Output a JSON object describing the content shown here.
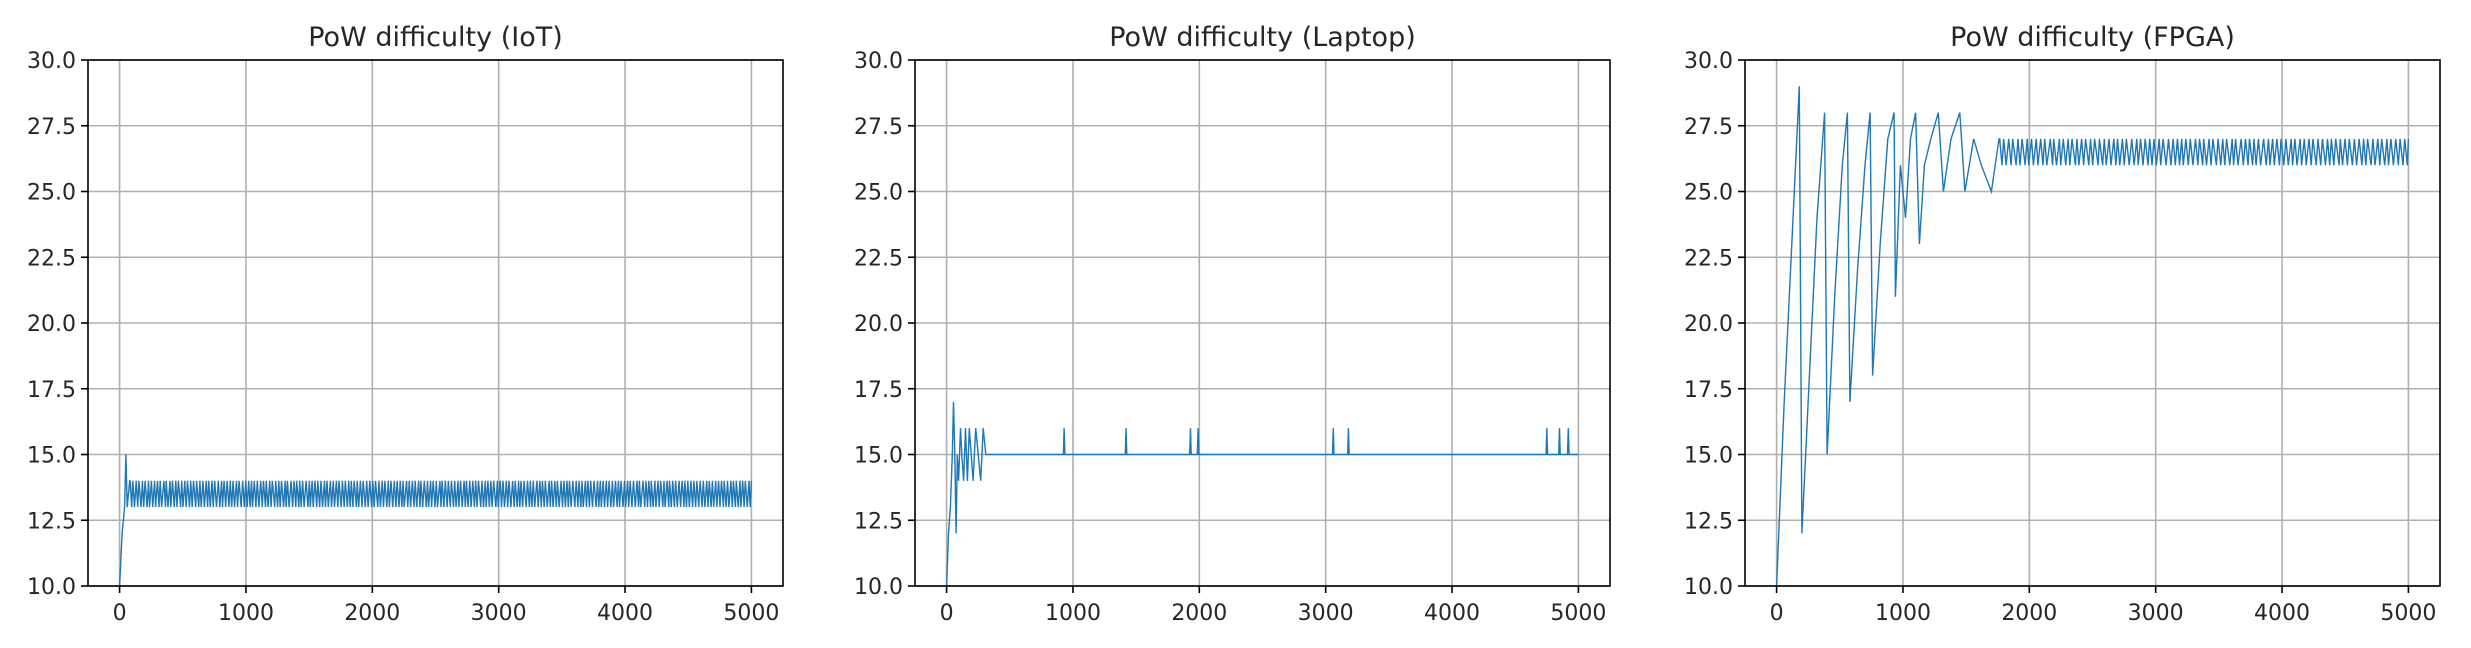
{
  "chart_data": [
    {
      "type": "line",
      "title": "PoW difficulty (IoT)",
      "xlabel": "",
      "ylabel": "",
      "xlim": [
        -250,
        5250
      ],
      "ylim": [
        10,
        30
      ],
      "xticks": [
        0,
        1000,
        2000,
        3000,
        4000,
        5000
      ],
      "yticks": [
        10.0,
        12.5,
        15.0,
        17.5,
        20.0,
        22.5,
        25.0,
        27.5,
        30.0
      ],
      "xtick_labels": [
        "0",
        "1000",
        "2000",
        "3000",
        "4000",
        "5000"
      ],
      "ytick_labels": [
        "10.0",
        "12.5",
        "15.0",
        "17.5",
        "20.0",
        "22.5",
        "25.0",
        "27.5",
        "30.0"
      ],
      "grid": true,
      "color": "#1f77b4",
      "series": [
        {
          "values_description": "oscillates between 13 and 14 across iterations",
          "points": [
            [
              0,
              10
            ],
            [
              20,
              12
            ],
            [
              40,
              13
            ],
            [
              50,
              15
            ],
            [
              60,
              13
            ],
            [
              80,
              14
            ],
            [
              100,
              13
            ],
            [
              5000,
              13
            ]
          ],
          "band": {
            "x_start": 80,
            "x_end": 5000,
            "low": 13,
            "high": 14,
            "step": 12
          }
        }
      ]
    },
    {
      "type": "line",
      "title": "PoW difficulty (Laptop)",
      "xlabel": "",
      "ylabel": "",
      "xlim": [
        -250,
        5250
      ],
      "ylim": [
        10,
        30
      ],
      "xticks": [
        0,
        1000,
        2000,
        3000,
        4000,
        5000
      ],
      "yticks": [
        10.0,
        12.5,
        15.0,
        17.5,
        20.0,
        22.5,
        25.0,
        27.5,
        30.0
      ],
      "xtick_labels": [
        "0",
        "1000",
        "2000",
        "3000",
        "4000",
        "5000"
      ],
      "ytick_labels": [
        "10.0",
        "12.5",
        "15.0",
        "17.5",
        "20.0",
        "22.5",
        "25.0",
        "27.5",
        "30.0"
      ],
      "grid": true,
      "color": "#1f77b4",
      "series": [
        {
          "points": [
            [
              0,
              10
            ],
            [
              15,
              12
            ],
            [
              30,
              13
            ],
            [
              45,
              15
            ],
            [
              55,
              17
            ],
            [
              65,
              15
            ],
            [
              75,
              12
            ],
            [
              85,
              15
            ],
            [
              95,
              14
            ],
            [
              110,
              16
            ],
            [
              120,
              15
            ],
            [
              135,
              14
            ],
            [
              150,
              16
            ],
            [
              165,
              14
            ],
            [
              180,
              16
            ],
            [
              195,
              15
            ],
            [
              210,
              14
            ],
            [
              230,
              16
            ],
            [
              250,
              15
            ],
            [
              270,
              14
            ],
            [
              290,
              16
            ],
            [
              310,
              15
            ],
            [
              5000,
              15
            ]
          ],
          "spikes": [
            [
              930,
              16
            ],
            [
              1420,
              16
            ],
            [
              1930,
              16
            ],
            [
              1990,
              16
            ],
            [
              3060,
              16
            ],
            [
              3180,
              16
            ],
            [
              4750,
              16
            ],
            [
              4850,
              16
            ],
            [
              4920,
              16
            ]
          ],
          "base": 15
        }
      ]
    },
    {
      "type": "line",
      "title": "PoW difficulty (FPGA)",
      "xlabel": "",
      "ylabel": "",
      "xlim": [
        -250,
        5250
      ],
      "ylim": [
        10,
        30
      ],
      "xticks": [
        0,
        1000,
        2000,
        3000,
        4000,
        5000
      ],
      "yticks": [
        10.0,
        12.5,
        15.0,
        17.5,
        20.0,
        22.5,
        25.0,
        27.5,
        30.0
      ],
      "xtick_labels": [
        "0",
        "1000",
        "2000",
        "3000",
        "4000",
        "5000"
      ],
      "ytick_labels": [
        "10.0",
        "12.5",
        "15.0",
        "17.5",
        "20.0",
        "22.5",
        "25.0",
        "27.5",
        "30.0"
      ],
      "grid": true,
      "color": "#1f77b4",
      "series": [
        {
          "points": [
            [
              0,
              10
            ],
            [
              60,
              17
            ],
            [
              120,
              23
            ],
            [
              180,
              29
            ],
            [
              200,
              12
            ],
            [
              260,
              18
            ],
            [
              320,
              24
            ],
            [
              380,
              28
            ],
            [
              400,
              15
            ],
            [
              460,
              21
            ],
            [
              520,
              26
            ],
            [
              560,
              28
            ],
            [
              580,
              17
            ],
            [
              640,
              22
            ],
            [
              700,
              26
            ],
            [
              740,
              28
            ],
            [
              760,
              18
            ],
            [
              820,
              23
            ],
            [
              880,
              27
            ],
            [
              930,
              28
            ],
            [
              940,
              21
            ],
            [
              980,
              26
            ],
            [
              1020,
              24
            ],
            [
              1060,
              27
            ],
            [
              1100,
              28
            ],
            [
              1130,
              23
            ],
            [
              1170,
              26
            ],
            [
              1220,
              27
            ],
            [
              1280,
              28
            ],
            [
              1320,
              25
            ],
            [
              1380,
              27
            ],
            [
              1450,
              28
            ],
            [
              1490,
              25
            ],
            [
              1560,
              27
            ],
            [
              1620,
              26
            ],
            [
              1700,
              25
            ],
            [
              1760,
              27
            ]
          ],
          "band": {
            "x_start": 1760,
            "x_end": 5000,
            "low": 26,
            "high": 27,
            "step": 18
          }
        }
      ]
    }
  ]
}
